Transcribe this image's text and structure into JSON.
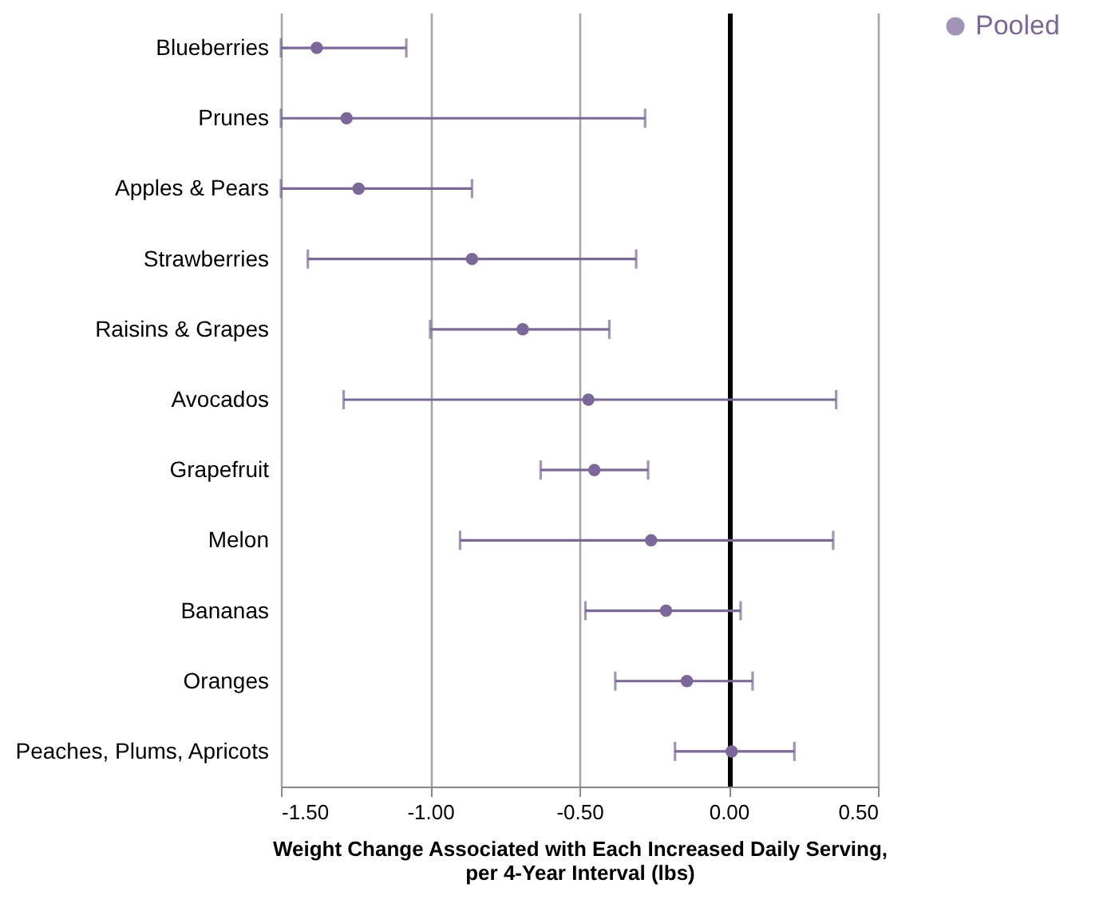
{
  "chart_data": {
    "type": "scatter",
    "orientation": "horizontal",
    "xlabel": "Weight Change Associated with Each Increased Daily Serving, per 4-Year Interval (lbs)",
    "categories": [
      "Blueberries",
      "Prunes",
      "Apples & Pears",
      "Strawberries",
      "Raisins & Grapes",
      "Avocados",
      "Grapefruit",
      "Melon",
      "Bananas",
      "Oranges",
      "Peaches, Plums, Apricots"
    ],
    "series": [
      {
        "name": "Pooled",
        "color": "#7b6799",
        "values": [
          -1.38,
          -1.28,
          -1.24,
          -0.86,
          -0.69,
          -0.47,
          -0.45,
          -0.26,
          -0.21,
          -0.14,
          0.01
        ],
        "errors": [
          [
            -1.5,
            -1.08
          ],
          [
            -1.5,
            -0.28
          ],
          [
            -1.5,
            -0.86
          ],
          [
            -1.41,
            -0.31
          ],
          [
            -1.0,
            -0.4
          ],
          [
            -1.29,
            0.36
          ],
          [
            -0.63,
            -0.27
          ],
          [
            -0.9,
            0.35
          ],
          [
            -0.48,
            0.04
          ],
          [
            -0.38,
            0.08
          ],
          [
            -0.18,
            0.22
          ]
        ]
      }
    ],
    "xlim": [
      -1.5,
      0.5
    ],
    "xticks": [
      {
        "value": -1.5,
        "label": "-1.50"
      },
      {
        "value": -1.0,
        "label": "-1.00"
      },
      {
        "value": -0.5,
        "label": "-0.50"
      },
      {
        "value": 0,
        "label": "0.00"
      },
      {
        "value": 0.5,
        "label": "0.50"
      }
    ],
    "grid": "x",
    "legend": "right",
    "marker": "circle"
  }
}
